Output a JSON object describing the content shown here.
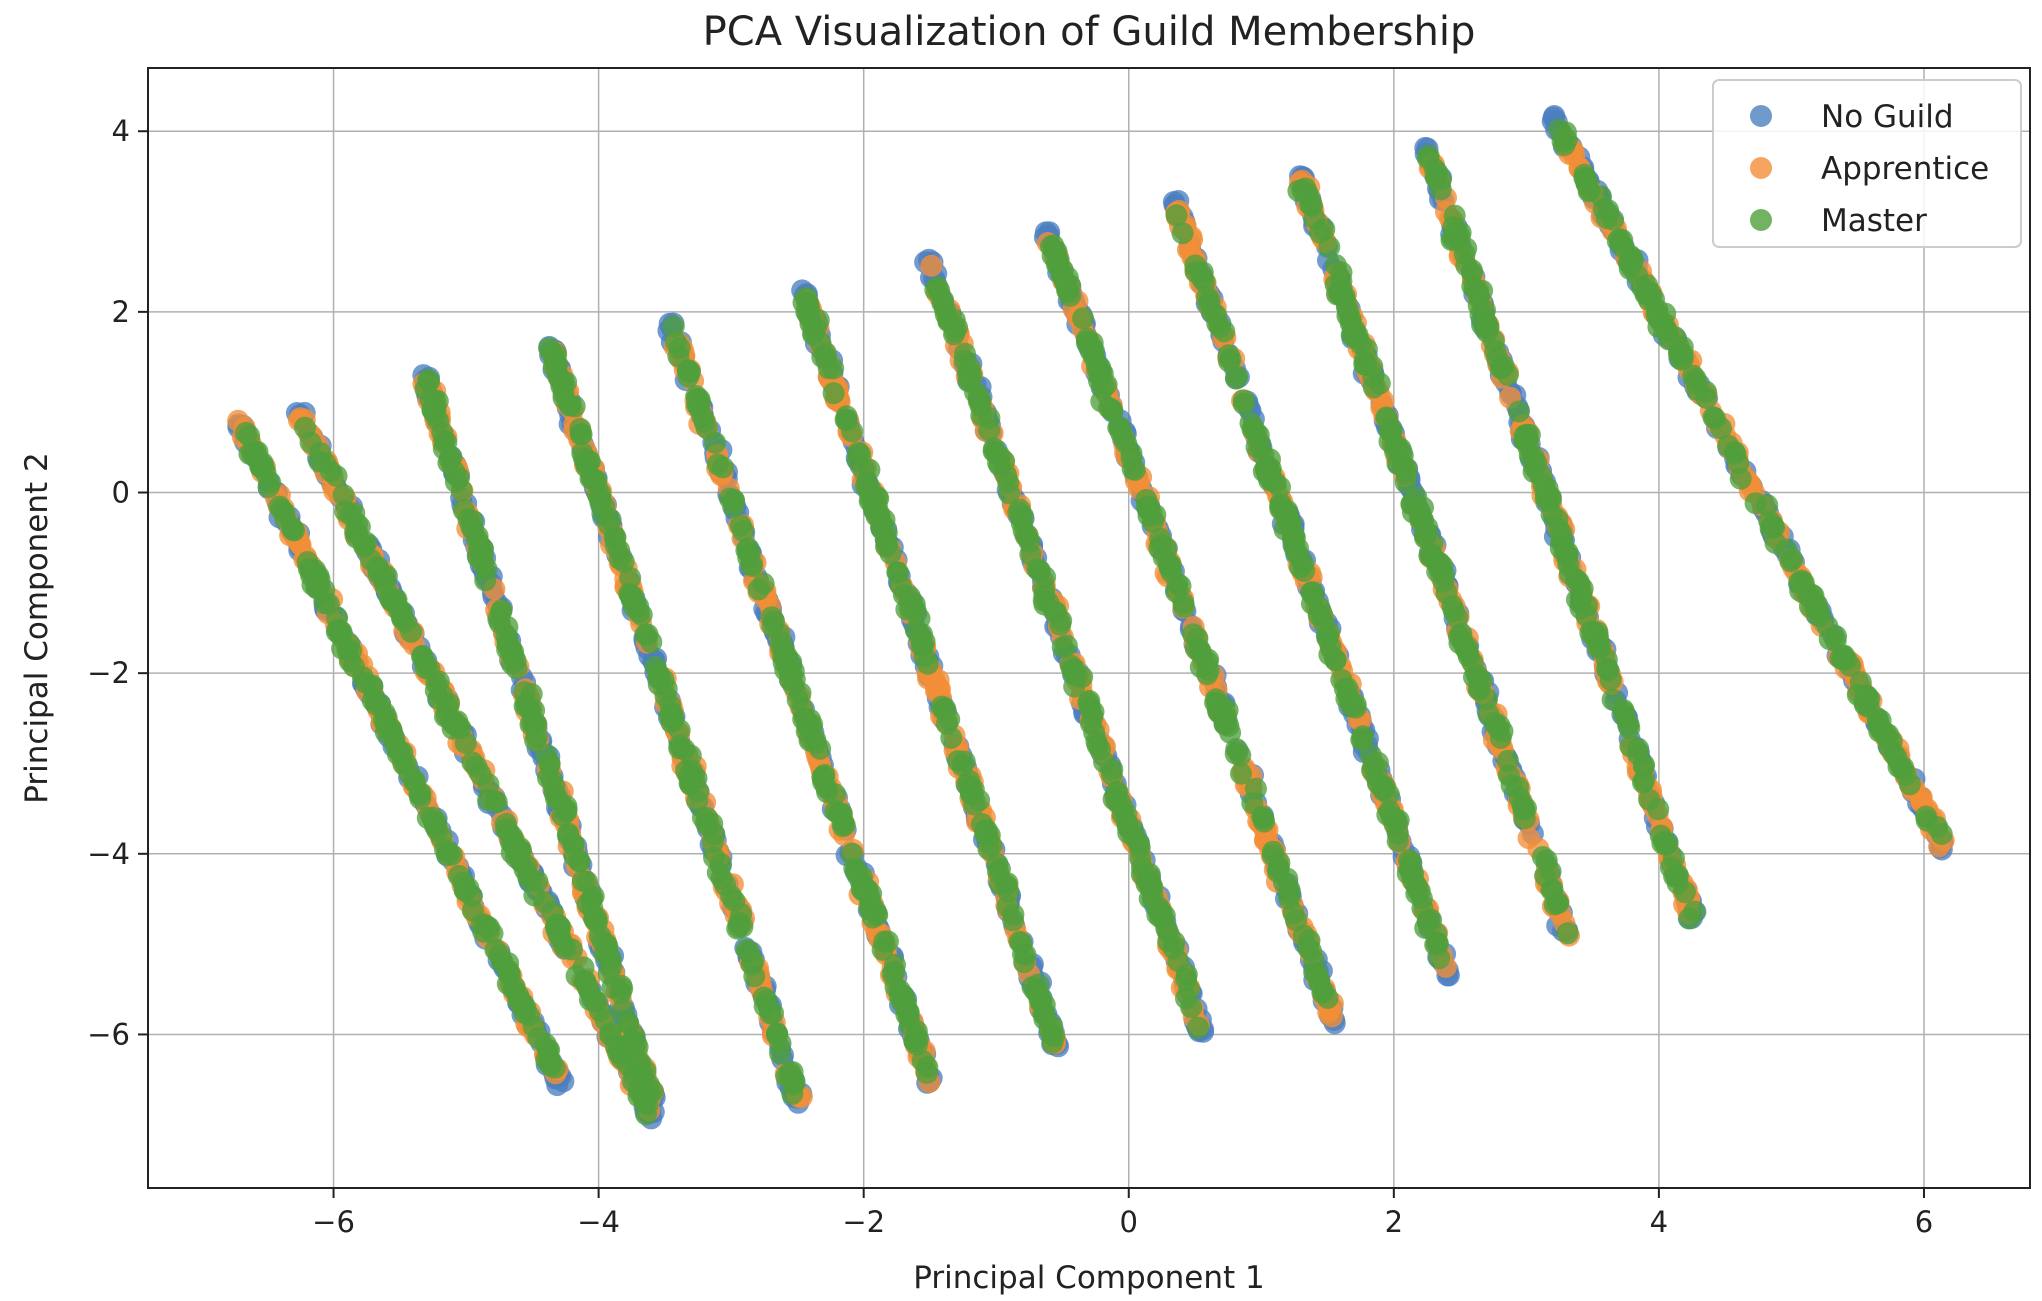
{
  "chart_data": {
    "type": "scatter",
    "title": "PCA Visualization of Guild Membership",
    "xlabel": "Principal Component 1",
    "ylabel": "Principal Component 2",
    "xlim": [
      -7.4,
      6.8
    ],
    "ylim": [
      -7.7,
      4.7
    ],
    "xticks": [
      -6,
      -4,
      -2,
      0,
      2,
      4,
      6
    ],
    "yticks": [
      -6,
      -4,
      -2,
      0,
      2,
      4
    ],
    "xtick_labels": [
      "−6",
      "−4",
      "−2",
      "0",
      "2",
      "4",
      "6"
    ],
    "ytick_labels": [
      "−6",
      "−4",
      "−2",
      "0",
      "2",
      "4"
    ],
    "grid": true,
    "legend_position": "top-right",
    "series": [
      {
        "name": "No Guild",
        "color": "#4c7fbf"
      },
      {
        "name": "Apprentice",
        "color": "#f28e37"
      },
      {
        "name": "Master",
        "color": "#4f9f3c"
      }
    ],
    "clusters": [
      {
        "start": [
          -6.7,
          0.75
        ],
        "end": [
          -4.3,
          -6.5
        ]
      },
      {
        "start": [
          -6.25,
          0.85
        ],
        "end": [
          -3.6,
          -6.9
        ]
      },
      {
        "start": [
          -5.3,
          1.25
        ],
        "end": [
          -3.6,
          -6.7
        ]
      },
      {
        "start": [
          -4.35,
          1.55
        ],
        "end": [
          -2.5,
          -6.7
        ]
      },
      {
        "start": [
          -3.45,
          1.85
        ],
        "end": [
          -1.5,
          -6.5
        ]
      },
      {
        "start": [
          -2.45,
          2.2
        ],
        "end": [
          -0.55,
          -6.1
        ]
      },
      {
        "start": [
          -1.5,
          2.55
        ],
        "end": [
          0.55,
          -5.95
        ]
      },
      {
        "start": [
          -0.6,
          2.85
        ],
        "end": [
          1.55,
          -5.85
        ]
      },
      {
        "start": [
          0.35,
          3.2
        ],
        "end": [
          2.4,
          -5.3
        ]
      },
      {
        "start": [
          1.3,
          3.5
        ],
        "end": [
          3.3,
          -4.85
        ]
      },
      {
        "start": [
          2.25,
          3.8
        ],
        "end": [
          4.25,
          -4.7
        ]
      },
      {
        "start": [
          3.2,
          4.15
        ],
        "end": [
          6.15,
          -3.9
        ]
      }
    ]
  }
}
